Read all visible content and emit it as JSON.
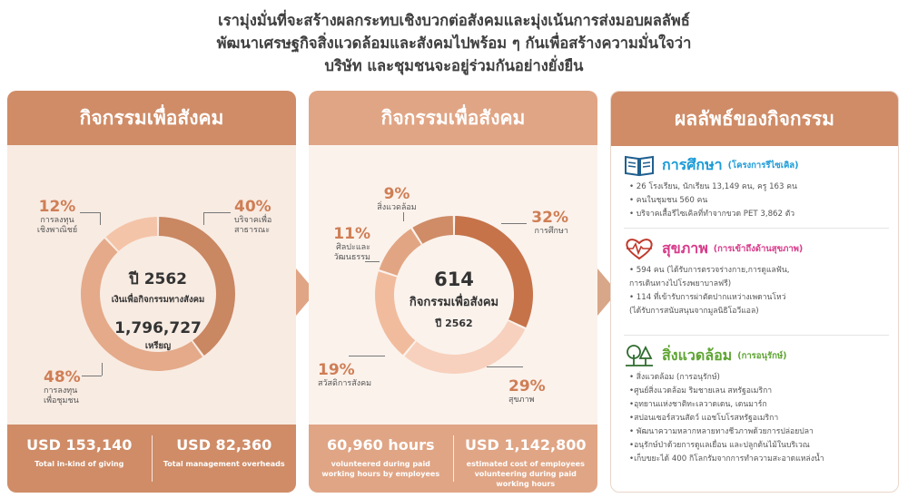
{
  "headline": {
    "line1": "เรามุ่งมั่นที่จะสร้างผลกระทบเชิงบวกต่อสังคมและมุ่งเน้นการส่งมอบผลลัพธ์",
    "line2": "พัฒนาเศรษฐกิจสิ่งแวดล้อมและสังคมไปพร้อม ๆ กันเพื่อสร้างความมั่นใจว่า",
    "line3": "บริษัท และชุมชนจะอยู่ร่วมกันอย่างยั่งยืน"
  },
  "panel1": {
    "title": "กิจกรรมเพื่อสังคม",
    "center": {
      "year": "ปี 2562",
      "subtitle": "เงินเพื่อกิจกรรมทางสังคม",
      "amount": "1,796,727",
      "unit": "เหรียญ"
    },
    "segments": [
      {
        "pct": "40%",
        "label1": "บริจาคเพื่อ",
        "label2": "สาธารณะ",
        "value": 40,
        "color": "#c98762"
      },
      {
        "pct": "48%",
        "label1": "การลงทุน",
        "label2": "เพื่อชุมชน",
        "value": 48,
        "color": "#e4aa89"
      },
      {
        "pct": "12%",
        "label1": "การลงทุน",
        "label2": "เชิงพาณิชย์",
        "value": 12,
        "color": "#f4c4a8"
      }
    ],
    "footer": [
      {
        "big": "USD 153,140",
        "small": "Total in-kind of giving"
      },
      {
        "big": "USD 82,360",
        "small": "Total management overheads"
      }
    ]
  },
  "panel2": {
    "title": "กิจกรรมเพื่อสังคม",
    "center": {
      "count": "614",
      "subtitle": "กิจกรรมเพื่อสังคม",
      "year": "ปี 2562"
    },
    "segments": [
      {
        "pct": "32%",
        "label": "การศึกษา",
        "value": 32,
        "color": "#c6734a"
      },
      {
        "pct": "29%",
        "label": "สุขภาพ",
        "value": 29,
        "color": "#f7d1bd"
      },
      {
        "pct": "19%",
        "label": "สวัสดิการสังคม",
        "value": 19,
        "color": "#f1bc9e"
      },
      {
        "pct": "11%",
        "label1": "ศิลปะและ",
        "label2": "วัฒนธรรม",
        "value": 11,
        "color": "#e2a583"
      },
      {
        "pct": "9%",
        "label": "สิ่งแวดล้อม",
        "value": 9,
        "color": "#cf8c67"
      }
    ],
    "footer": [
      {
        "big": "60,960 hours",
        "small": "volunteered during paid working hours by employees"
      },
      {
        "big": "USD 1,142,800",
        "small": "estimated cost of employees volunteering during paid working hours"
      }
    ]
  },
  "panel3": {
    "title": "ผลลัพธ์ของกิจกรรม",
    "education": {
      "title": "การศึกษา",
      "sub": "(โครงการรีไซเคิล)",
      "color": "#1b9bd7",
      "items": [
        "• 26 โรงเรียน, นักเรียน 13,149 คน, ครู 163 คน",
        "• คนในชุมชน 560 คน",
        "• บริจาคเสื้อรีไซเคิลที่ทำจากขวด PET 3,862 ตัว"
      ]
    },
    "health": {
      "title": "สุขภาพ",
      "sub": "(การเข้าถึงด้านสุขภาพ)",
      "color": "#d83a8a",
      "items": [
        "• 594 คน (ได้รับการตรวจร่างกาย,การดูแลฟัน,",
        "การเดินทางไปโรงพยาบาลฟรี)",
        "• 114 ที่เข้ารับการผ่าตัดปากแหว่างเพดานโหว่",
        "(ได้รับการสนับสนุนจากมูลนิธิโอวีแอล)"
      ]
    },
    "environment": {
      "title": "สิ่งแวดล้อม",
      "sub": "(การอนุรักษ์)",
      "color": "#5ea532",
      "items": [
        "• สิ่งแวดล้อม (การอนุรักษ์)",
        "•ศูนย์สิ่งแวดล้อม ริมชายเลน สหรัฐอเมริกา",
        "•อุทยานแห่งชาติทะเลวาดเดน, เดนมาร์ก",
        "•สปอนเซอร์สวนสัตว์ แอชโบโรสหรัฐอเมริกา",
        "• พัฒนาความหลากหลายทางชีวภาพด้วยการปล่อยปลา",
        "•อนุรักษ์ป่าด้วยการดูแลเยื่อน และปลูกต้นไม้ในบริเวณ",
        "•เก็บขยะได้ 400 กิโลกรัมจากการทำความสะอาดแหล่งน้ำ"
      ]
    }
  }
}
